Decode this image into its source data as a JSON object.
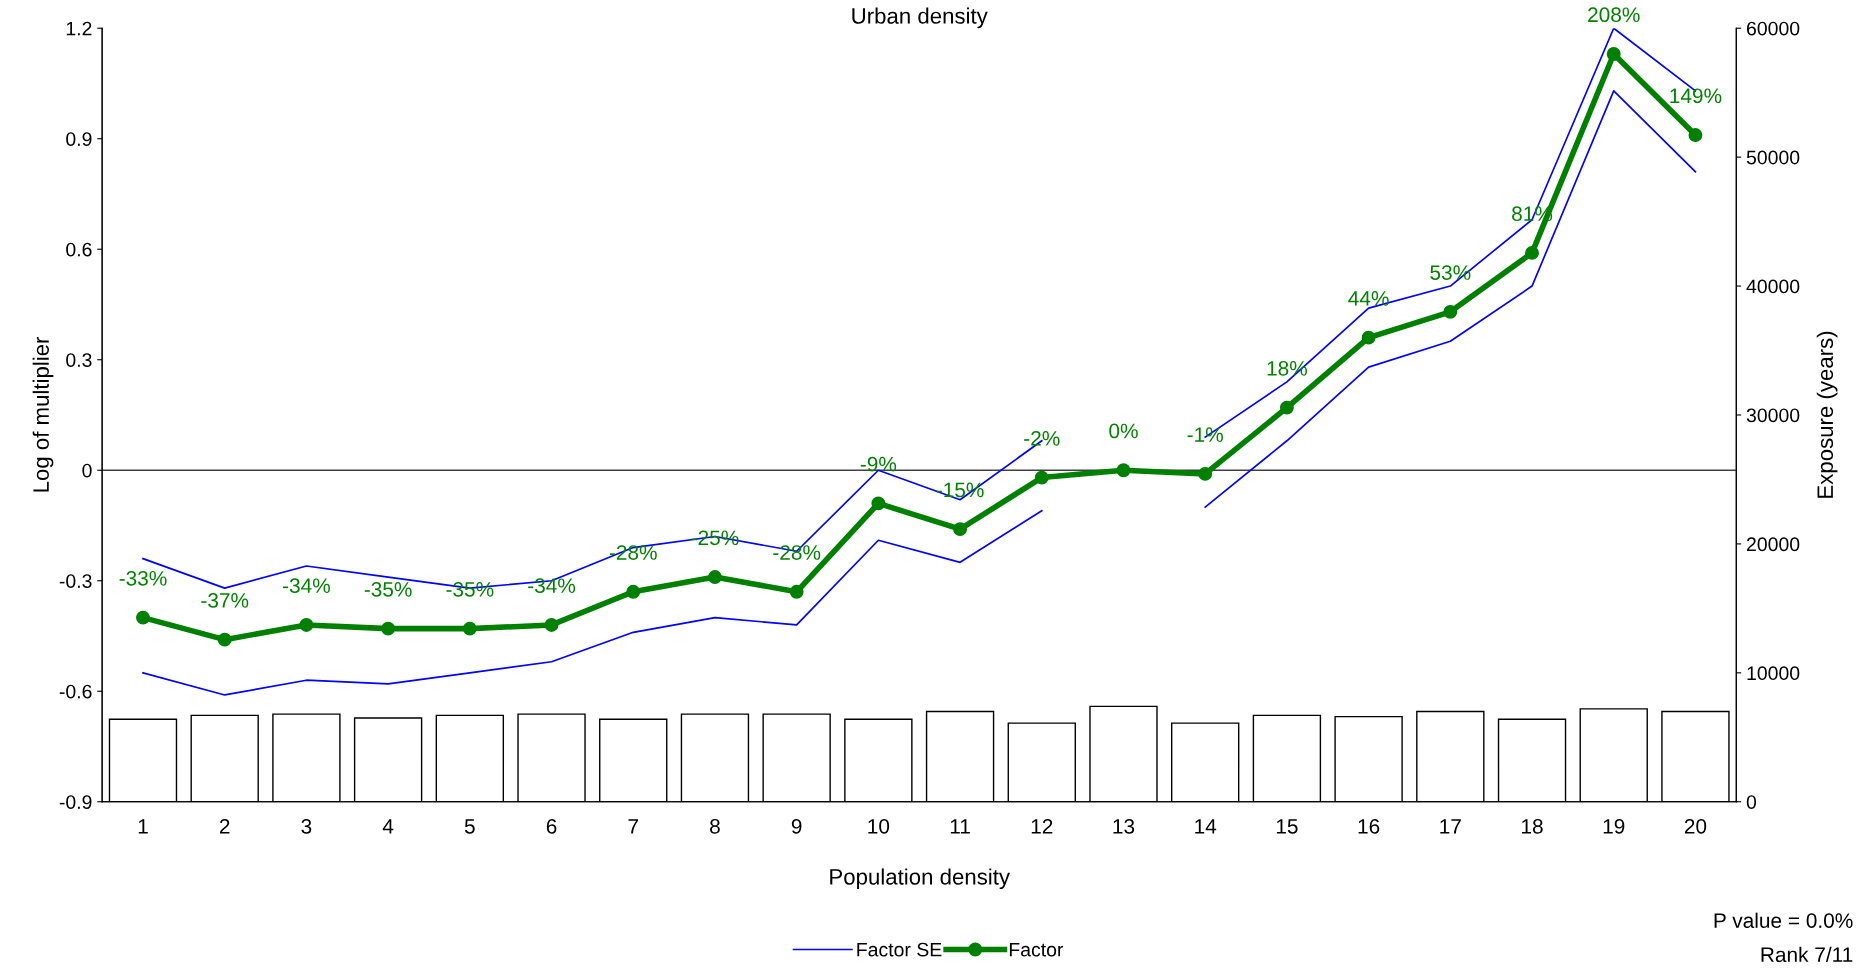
{
  "chart_data": {
    "type": "line",
    "title": "Urban density",
    "xlabel": "Population density",
    "ylabel": "Log of multiplier",
    "y2label": "Exposure (years)",
    "categories": [
      "1",
      "2",
      "3",
      "4",
      "5",
      "6",
      "7",
      "8",
      "9",
      "10",
      "11",
      "12",
      "13",
      "14",
      "15",
      "16",
      "17",
      "18",
      "19",
      "20"
    ],
    "series": [
      {
        "type": "bar",
        "axis": "y2",
        "color": "#ffffff",
        "values": [
          6400,
          6700,
          6800,
          6500,
          6700,
          6800,
          6400,
          6800,
          6800,
          6400,
          7000,
          6100,
          7400,
          6100,
          6700,
          6600,
          7000,
          6400,
          7200,
          7000
        ]
      },
      {
        "name": "Factor SE",
        "color": "#0000ff",
        "marker": "none",
        "values": [
          -0.24,
          -0.32,
          -0.26,
          -0.29,
          -0.32,
          -0.3,
          -0.21,
          -0.18,
          -0.22,
          0.0,
          -0.08,
          0.08,
          null,
          0.09,
          0.24,
          0.44,
          0.5,
          0.68,
          1.2,
          1.03
        ]
      },
      {
        "color": "#0000ff",
        "marker": "none",
        "values": [
          -0.55,
          -0.61,
          -0.57,
          -0.58,
          -0.55,
          -0.52,
          -0.44,
          -0.4,
          -0.42,
          -0.19,
          -0.25,
          -0.11,
          null,
          -0.1,
          0.08,
          0.28,
          0.35,
          0.5,
          1.03,
          0.81
        ]
      },
      {
        "name": "Factor",
        "color": "#008000",
        "marker": "circle",
        "values": [
          -0.4,
          -0.46,
          -0.42,
          -0.43,
          -0.43,
          -0.42,
          -0.33,
          -0.29,
          -0.33,
          -0.09,
          -0.16,
          -0.02,
          0.0,
          -0.01,
          0.17,
          0.36,
          0.43,
          0.59,
          1.13,
          0.91
        ]
      }
    ],
    "ylim": [
      -0.9,
      1.2
    ],
    "yticks": [
      -0.9,
      -0.6,
      -0.3,
      0,
      0.3,
      0.6,
      0.9,
      1.2
    ],
    "y2lim": [
      0,
      60000
    ],
    "y2ticks": [
      0,
      10000,
      20000,
      30000,
      40000,
      50000,
      60000
    ],
    "ref_lines": [
      {
        "axis": "y",
        "value": 0,
        "color": "#404040"
      }
    ],
    "annotations": [
      {
        "text": "-33%",
        "x": "1",
        "y": -0.4
      },
      {
        "text": "-37%",
        "x": "2",
        "y": -0.46
      },
      {
        "text": "-34%",
        "x": "3",
        "y": -0.42
      },
      {
        "text": "-35%",
        "x": "4",
        "y": -0.43
      },
      {
        "text": "-35%",
        "x": "5",
        "y": -0.43
      },
      {
        "text": "-34%",
        "x": "6",
        "y": -0.42
      },
      {
        "text": "-28%",
        "x": "7",
        "y": -0.33
      },
      {
        "text": "-25%",
        "x": "8",
        "y": -0.29
      },
      {
        "text": "-28%",
        "x": "9",
        "y": -0.33
      },
      {
        "text": "-9%",
        "x": "10",
        "y": -0.09
      },
      {
        "text": "-15%",
        "x": "11",
        "y": -0.16
      },
      {
        "text": "-2%",
        "x": "12",
        "y": -0.02
      },
      {
        "text": "0%",
        "x": "13",
        "y": 0.0
      },
      {
        "text": "-1%",
        "x": "14",
        "y": -0.01
      },
      {
        "text": "18%",
        "x": "15",
        "y": 0.17
      },
      {
        "text": "44%",
        "x": "16",
        "y": 0.36
      },
      {
        "text": "53%",
        "x": "17",
        "y": 0.43
      },
      {
        "text": "81%",
        "x": "18",
        "y": 0.59
      },
      {
        "text": "208%",
        "x": "19",
        "y": 1.13
      },
      {
        "text": "149%",
        "x": "20",
        "y": 0.91
      },
      "P value = 0.0%",
      "Rank 7/11"
    ],
    "legend": "bottom",
    "grid": false
  }
}
